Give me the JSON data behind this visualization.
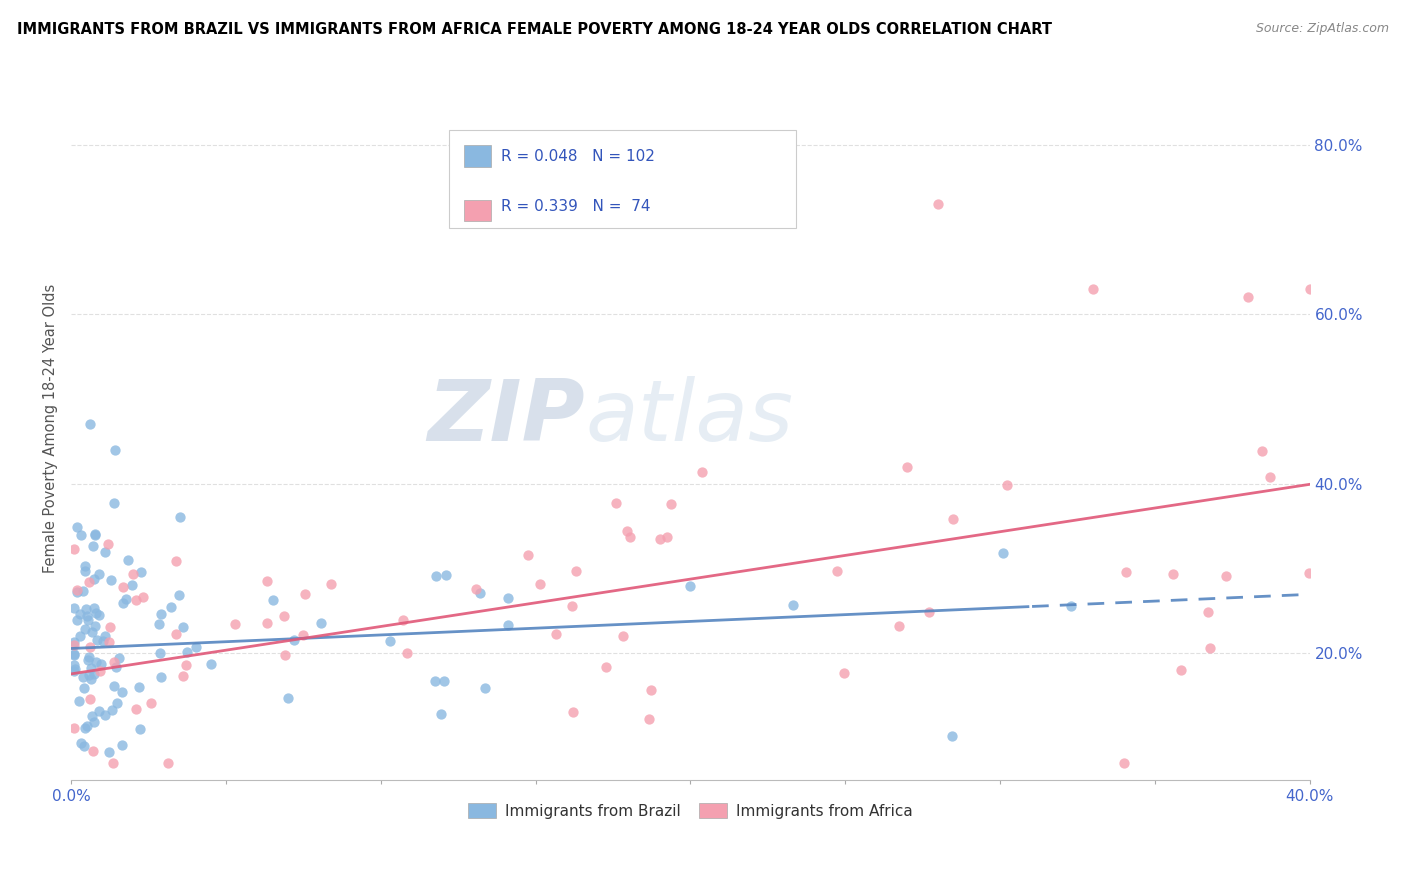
{
  "title": "IMMIGRANTS FROM BRAZIL VS IMMIGRANTS FROM AFRICA FEMALE POVERTY AMONG 18-24 YEAR OLDS CORRELATION CHART",
  "source": "Source: ZipAtlas.com",
  "ylabel": "Female Poverty Among 18-24 Year Olds",
  "ytick_vals": [
    0.2,
    0.4,
    0.6,
    0.8
  ],
  "ytick_labels": [
    "20.0%",
    "40.0%",
    "60.0%",
    "80.0%"
  ],
  "xlim": [
    0.0,
    0.4
  ],
  "ylim": [
    0.05,
    0.88
  ],
  "brazil_R": 0.048,
  "brazil_N": 102,
  "africa_R": 0.339,
  "africa_N": 74,
  "brazil_color": "#8ab8e0",
  "africa_color": "#f4a0b0",
  "brazil_line_color": "#5585c0",
  "africa_line_color": "#e05878",
  "legend_text_color": "#3355bb",
  "legend_N_color": "#cc3355",
  "watermark_color": "#d0dff0",
  "grid_color": "#e0e0e0",
  "axis_label_color": "#4466cc"
}
